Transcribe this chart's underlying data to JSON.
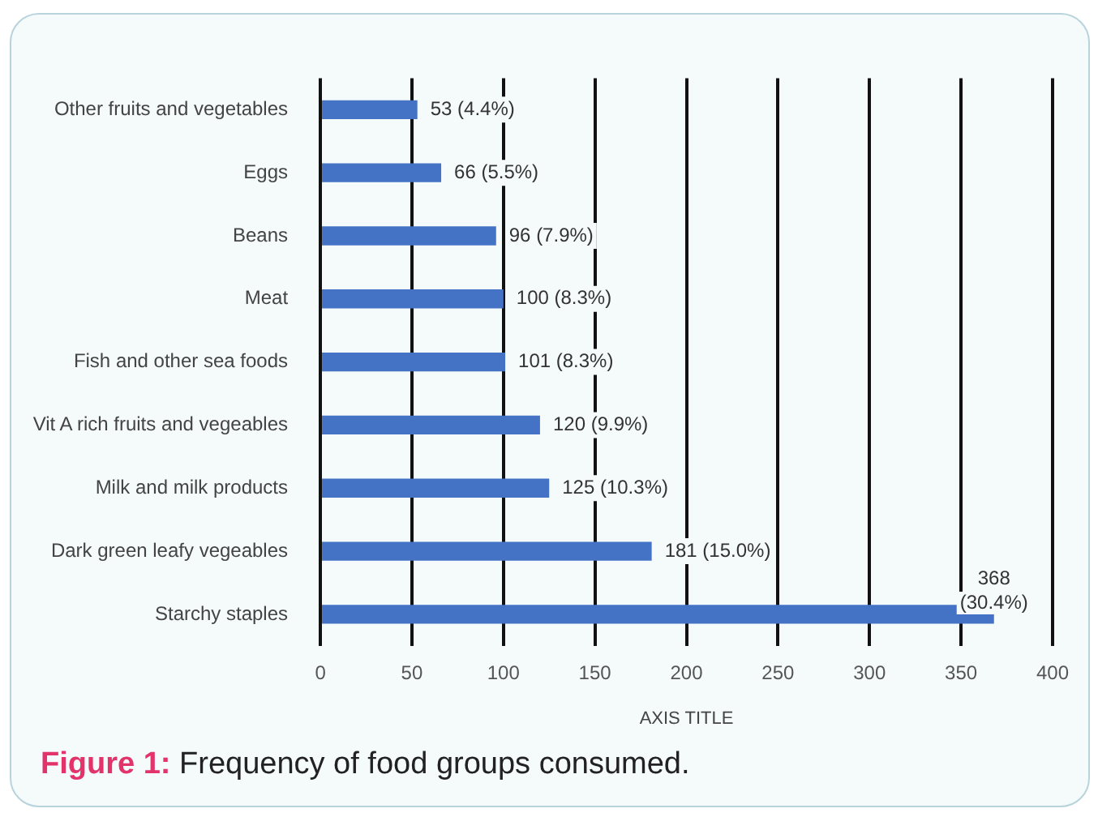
{
  "chart_data": {
    "type": "bar",
    "orientation": "horizontal",
    "title": "Figure 1: Frequency of food groups consumed.",
    "xlabel": "AXIS TITLE",
    "categories": [
      "Other fruits and vegetables",
      "Eggs",
      "Beans",
      "Meat",
      "Fish and other sea foods",
      "Vit A rich fruits and vegeables",
      "Milk and milk products",
      "Dark green leafy vegeables",
      "Starchy staples"
    ],
    "values": [
      53,
      66,
      96,
      100,
      101,
      120,
      125,
      181,
      368
    ],
    "value_labels": [
      "53 (4.4%)",
      "66 (5.5%)",
      "96 (7.9%)",
      "100 (8.3%)",
      "101 (8.3%)",
      "120 (9.9%)",
      "125 (10.3%)",
      "181 (15.0%)",
      "368 (30.4%)"
    ],
    "color": "#4472c4",
    "xlim": [
      0,
      400
    ],
    "xticks": [
      0,
      50,
      100,
      150,
      200,
      250,
      300,
      350,
      400
    ],
    "grid": "x",
    "legend": false
  }
}
